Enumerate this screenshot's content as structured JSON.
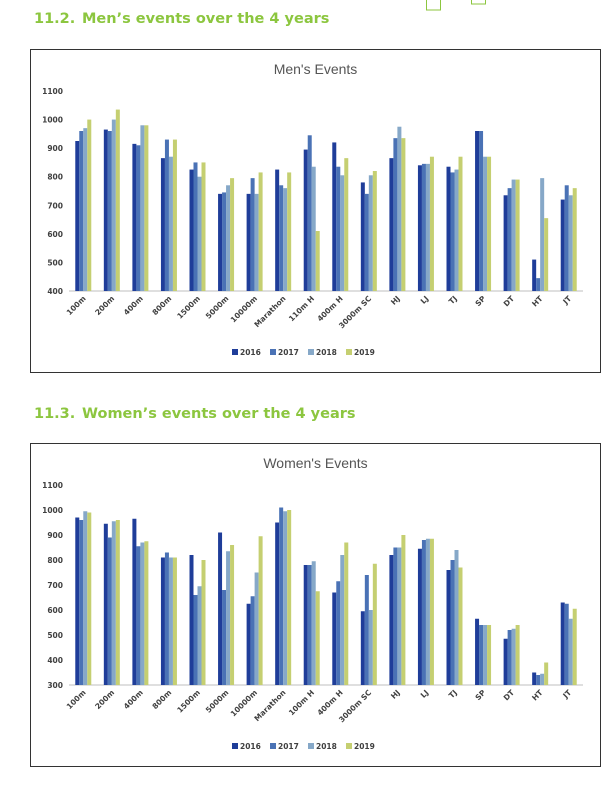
{
  "sections": [
    {
      "number": "11.2.",
      "title": "Men’s events over the 4 years"
    },
    {
      "number": "11.3.",
      "title": "Women’s events over the 4 years"
    }
  ],
  "colors": {
    "heading": "#8cc63f",
    "series": [
      "#1f3d99",
      "#4a72b5",
      "#86a8c8",
      "#c5cf71"
    ]
  },
  "chart_data": [
    {
      "type": "bar",
      "title": "Men's Events",
      "xlabel": "",
      "ylabel": "",
      "ylim": [
        400,
        1100
      ],
      "yticks": [
        400,
        500,
        600,
        700,
        800,
        900,
        1000,
        1100
      ],
      "grid": false,
      "legend": "bottom",
      "categories": [
        "100m",
        "200m",
        "400m",
        "800m",
        "1500m",
        "5000m",
        "10000m",
        "Marathon",
        "110m H",
        "400m H",
        "3000m SC",
        "HJ",
        "LJ",
        "TJ",
        "SP",
        "DT",
        "HT",
        "JT"
      ],
      "series": [
        {
          "name": "2016",
          "values": [
            925,
            965,
            915,
            865,
            825,
            740,
            740,
            825,
            895,
            920,
            780,
            865,
            840,
            835,
            960,
            735,
            510,
            720
          ]
        },
        {
          "name": "2017",
          "values": [
            960,
            960,
            910,
            930,
            850,
            745,
            795,
            770,
            945,
            835,
            740,
            935,
            845,
            815,
            960,
            760,
            445,
            770
          ]
        },
        {
          "name": "2018",
          "values": [
            970,
            1000,
            980,
            870,
            800,
            770,
            740,
            760,
            835,
            805,
            805,
            975,
            845,
            825,
            870,
            790,
            795,
            735
          ]
        },
        {
          "name": "2019",
          "values": [
            1000,
            1035,
            980,
            930,
            850,
            795,
            815,
            815,
            610,
            865,
            820,
            935,
            870,
            870,
            870,
            790,
            655,
            760
          ]
        }
      ]
    },
    {
      "type": "bar",
      "title": "Women's Events",
      "xlabel": "",
      "ylabel": "",
      "ylim": [
        300,
        1100
      ],
      "yticks": [
        300,
        400,
        500,
        600,
        700,
        800,
        900,
        1000,
        1100
      ],
      "grid": false,
      "legend": "bottom",
      "categories": [
        "100m",
        "200m",
        "400m",
        "800m",
        "1500m",
        "5000m",
        "10000m",
        "Marathon",
        "100m H",
        "400m H",
        "3000m SC",
        "HJ",
        "LJ",
        "TJ",
        "SP",
        "DT",
        "HT",
        "JT"
      ],
      "series": [
        {
          "name": "2016",
          "values": [
            970,
            945,
            965,
            810,
            820,
            910,
            625,
            950,
            780,
            670,
            595,
            820,
            845,
            760,
            565,
            485,
            350,
            630
          ]
        },
        {
          "name": "2017",
          "values": [
            960,
            890,
            855,
            830,
            660,
            680,
            655,
            1010,
            780,
            715,
            740,
            850,
            880,
            800,
            540,
            520,
            340,
            625
          ]
        },
        {
          "name": "2018",
          "values": [
            995,
            955,
            870,
            810,
            695,
            835,
            750,
            995,
            795,
            820,
            600,
            850,
            885,
            840,
            540,
            525,
            345,
            565
          ]
        },
        {
          "name": "2019",
          "values": [
            990,
            960,
            875,
            810,
            800,
            860,
            895,
            1000,
            675,
            870,
            785,
            900,
            885,
            770,
            540,
            540,
            390,
            605
          ]
        }
      ]
    }
  ]
}
